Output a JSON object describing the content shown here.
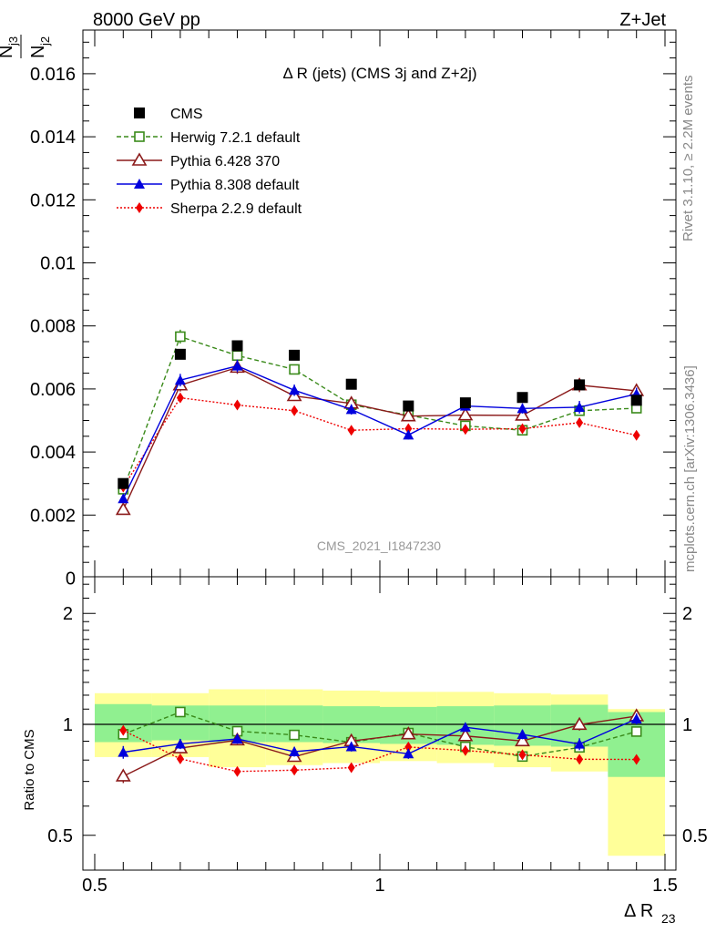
{
  "header": {
    "left": "8000 GeV pp",
    "right": "Z+Jet",
    "title": "Δ R (jets) (CMS 3j and Z+2j)",
    "watermark": "CMS_2021_I1847230",
    "side_rivet": "Rivet 3.1.10, ≥ 2.2M events",
    "side_mcplots": "mcplots.cern.ch [arXiv:1306.3436]"
  },
  "axes": {
    "ylabel_num": "N",
    "ylabel_num_sub": "j3",
    "ylabel_den": "N",
    "ylabel_den_sub": "j2",
    "ratio_ylabel": "Ratio to CMS",
    "xlabel": "Δ R",
    "xlabel_sub": "23",
    "main_yticks": [
      "0",
      "0.002",
      "0.004",
      "0.006",
      "0.008",
      "0.01",
      "0.012",
      "0.014",
      "0.016"
    ],
    "ratio_yticks": [
      "0.5",
      "1",
      "2"
    ],
    "xticks": [
      "0.5",
      "1",
      "1.5"
    ]
  },
  "colors": {
    "cms": "#000000",
    "herwig": "#3a8a1a",
    "pythia6": "#8b1a1a",
    "pythia8": "#0000dd",
    "sherpa": "#ee0000",
    "band_inner": "#90f090",
    "band_outer": "#ffff99"
  },
  "chart_data": {
    "type": "line",
    "x_edges": [
      0.5,
      0.6,
      0.7,
      0.8,
      0.9,
      1.0,
      1.1,
      1.2,
      1.3,
      1.4,
      1.5
    ],
    "x": [
      0.55,
      0.65,
      0.75,
      0.85,
      0.95,
      1.05,
      1.15,
      1.25,
      1.35,
      1.45
    ],
    "xlim": [
      0.5,
      1.5
    ],
    "ylim": [
      0,
      0.0175
    ],
    "ratio_ylim": [
      0.4,
      2.4
    ],
    "ratio_log": true,
    "series": [
      {
        "name": "CMS",
        "key": "cms",
        "marker": "square-filled",
        "line": "none",
        "values": [
          0.003,
          0.0071,
          0.00737,
          0.00707,
          0.00615,
          0.00546,
          0.00556,
          0.00573,
          0.00613,
          0.00564
        ]
      },
      {
        "name": "Herwig 7.2.1 default",
        "key": "herwig",
        "marker": "square-open",
        "line": "dashed",
        "values": [
          0.00282,
          0.00766,
          0.00706,
          0.00662,
          0.0055,
          0.00517,
          0.00483,
          0.00469,
          0.00531,
          0.00539
        ],
        "errors": [
          8e-05,
          0.00022,
          0.00015,
          0.00013,
          0.00012,
          0.00012,
          0.00011,
          0.00013,
          0.00012,
          0.00012
        ],
        "ratio": [
          0.94,
          1.08,
          0.958,
          0.936,
          0.894,
          0.947,
          0.869,
          0.818,
          0.866,
          0.956
        ]
      },
      {
        "name": "Pythia 6.428 370",
        "key": "pythia6",
        "marker": "triangle-open",
        "line": "solid",
        "values": [
          0.00217,
          0.00612,
          0.00668,
          0.00578,
          0.00554,
          0.00514,
          0.00517,
          0.00516,
          0.00612,
          0.00594
        ],
        "errors": [
          9e-05,
          0.0002,
          0.0002,
          0.00016,
          0.00016,
          0.00014,
          0.00014,
          0.00014,
          0.00022,
          0.00022
        ],
        "ratio": [
          0.723,
          0.862,
          0.906,
          0.817,
          0.901,
          0.941,
          0.93,
          0.901,
          0.998,
          1.053
        ]
      },
      {
        "name": "Pythia 8.308 default",
        "key": "pythia8",
        "marker": "triangle-filled",
        "line": "solid",
        "values": [
          0.00252,
          0.00628,
          0.00673,
          0.00596,
          0.00535,
          0.00454,
          0.00546,
          0.00538,
          0.00542,
          0.00584
        ],
        "errors": [
          0.0001,
          0.0002,
          0.0002,
          0.00018,
          0.00016,
          0.00014,
          0.00014,
          0.00016,
          0.0002,
          0.0002
        ],
        "ratio": [
          0.84,
          0.885,
          0.913,
          0.843,
          0.87,
          0.832,
          0.982,
          0.939,
          0.884,
          1.035
        ]
      },
      {
        "name": "Sherpa 2.2.9 default",
        "key": "sherpa",
        "marker": "diamond-filled",
        "line": "dotted",
        "values": [
          0.00289,
          0.00572,
          0.00549,
          0.00531,
          0.00469,
          0.00474,
          0.00472,
          0.00474,
          0.00493,
          0.00453
        ],
        "errors": [
          8e-05,
          0.00012,
          0.00012,
          0.00012,
          0.00011,
          0.00011,
          0.00011,
          0.00011,
          0.00012,
          0.00012
        ],
        "ratio": [
          0.963,
          0.806,
          0.745,
          0.751,
          0.763,
          0.868,
          0.849,
          0.827,
          0.804,
          0.803
        ]
      }
    ],
    "ratio_band_inner": [
      [
        0.895,
        1.135
      ],
      [
        0.905,
        1.125
      ],
      [
        0.895,
        1.125
      ],
      [
        0.895,
        1.125
      ],
      [
        0.89,
        1.12
      ],
      [
        0.885,
        1.115
      ],
      [
        0.88,
        1.12
      ],
      [
        0.875,
        1.125
      ],
      [
        0.87,
        1.13
      ],
      [
        0.72,
        1.08
      ]
    ],
    "ratio_band_outer": [
      [
        0.815,
        1.215
      ],
      [
        0.815,
        1.215
      ],
      [
        0.765,
        1.245
      ],
      [
        0.775,
        1.245
      ],
      [
        0.785,
        1.235
      ],
      [
        0.795,
        1.225
      ],
      [
        0.785,
        1.225
      ],
      [
        0.765,
        1.215
      ],
      [
        0.745,
        1.205
      ],
      [
        0.44,
        1.1
      ]
    ]
  }
}
